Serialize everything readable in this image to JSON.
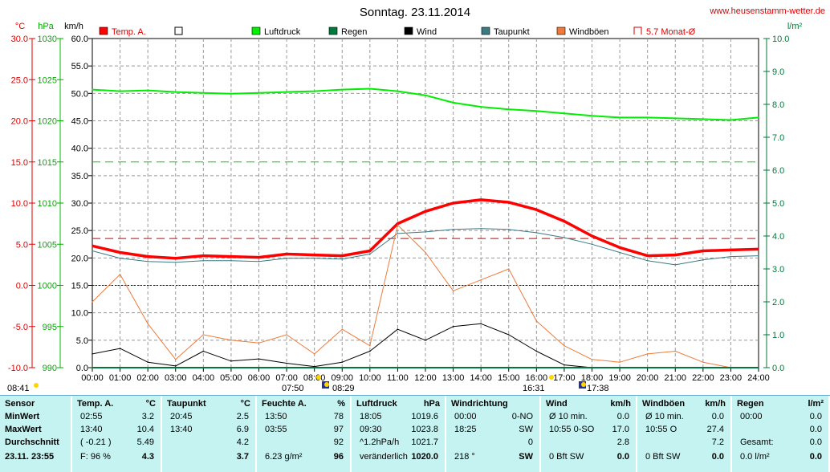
{
  "title": "Sonntag. 23.11.2014",
  "website": "www.heusenstamm-wetter.de",
  "colors": {
    "temp": "#ff0000",
    "pressure": "#00ee00",
    "rain": "#007a3a",
    "wind": "#000000",
    "dew": "#3a7a80",
    "gust": "#ee7a3a",
    "avg": "#cc0000"
  },
  "units": {
    "temp": "°C",
    "pressure": "hPa",
    "wind": "km/h",
    "rain": "l/m²"
  },
  "legend": [
    {
      "label": "Temp. A.",
      "color": "#ff0000",
      "style": "fill"
    },
    {
      "label": "",
      "color": "#000000",
      "style": "box"
    },
    {
      "label": "Luftdruck",
      "color": "#00ee00",
      "style": "fill"
    },
    {
      "label": "Regen",
      "color": "#007a3a",
      "style": "fill"
    },
    {
      "label": "Wind",
      "color": "#000000",
      "style": "fill"
    },
    {
      "label": "Taupunkt",
      "color": "#3a7a80",
      "style": "fill"
    },
    {
      "label": "Windböen",
      "color": "#ee7a3a",
      "style": "fill"
    },
    {
      "label": "5.7 Monat-Ø",
      "color": "#cc0000",
      "style": "bracket"
    }
  ],
  "below_axis": {
    "sunrise_left": "08:41",
    "moon_rise": "07:50",
    "sun_rise": "08:29",
    "moon_set": "16:31",
    "sun_set": "17:38"
  },
  "chart_data": {
    "type": "line",
    "x_ticks": [
      "00:00",
      "01:00",
      "02:00",
      "03:00",
      "04:00",
      "05:00",
      "06:00",
      "07:00",
      "08:00",
      "09:00",
      "10:00",
      "11:00",
      "12:00",
      "13:00",
      "14:00",
      "15:00",
      "16:00",
      "17:00",
      "18:00",
      "19:00",
      "20:00",
      "21:00",
      "22:00",
      "23:00",
      "24:00"
    ],
    "axes": {
      "temp": {
        "label": "°C",
        "range": [
          -10,
          30
        ],
        "ticks": [
          "-10.0",
          "-5.0",
          "0.0",
          "5.0",
          "10.0",
          "15.0",
          "20.0",
          "25.0",
          "30.0"
        ]
      },
      "pressure": {
        "label": "hPa",
        "range": [
          990,
          1030
        ],
        "ticks": [
          "990",
          "995",
          "1000",
          "1005",
          "1010",
          "1015",
          "1020",
          "1025",
          "1030"
        ]
      },
      "wind": {
        "label": "km/h",
        "range": [
          0,
          60
        ],
        "ticks": [
          "0.0",
          "5.0",
          "10.0",
          "15.0",
          "20.0",
          "25.0",
          "30.0",
          "35.0",
          "40.0",
          "45.0",
          "50.0",
          "55.0",
          "60.0"
        ]
      },
      "rain": {
        "label": "l/m²",
        "range": [
          0,
          10
        ],
        "ticks": [
          "0.0",
          "1.0",
          "2.0",
          "3.0",
          "4.0",
          "5.0",
          "6.0",
          "7.0",
          "8.0",
          "9.0",
          "10.0"
        ]
      }
    },
    "grid": true,
    "reference_lines": {
      "pressure_ref": 1015,
      "temp_zero": 0,
      "month_avg_temp": 5.7
    },
    "series": [
      {
        "name": "Temp. A.",
        "axis": "temp",
        "x": [
          0,
          1,
          2,
          3,
          4,
          5,
          6,
          7,
          8,
          9,
          10,
          11,
          12,
          13,
          14,
          15,
          16,
          17,
          18,
          19,
          20,
          21,
          22,
          23,
          24
        ],
        "values": [
          4.8,
          4.0,
          3.5,
          3.3,
          3.6,
          3.5,
          3.4,
          3.8,
          3.7,
          3.6,
          4.2,
          7.5,
          9.0,
          10.0,
          10.4,
          10.1,
          9.2,
          7.8,
          6.0,
          4.6,
          3.6,
          3.7,
          4.2,
          4.3,
          4.4
        ]
      },
      {
        "name": "Taupunkt",
        "axis": "temp",
        "x": [
          0,
          1,
          2,
          3,
          4,
          5,
          6,
          7,
          8,
          9,
          10,
          11,
          12,
          13,
          14,
          15,
          16,
          17,
          18,
          19,
          20,
          21,
          22,
          23,
          24
        ],
        "values": [
          4.2,
          3.3,
          2.9,
          2.8,
          3.0,
          3.0,
          2.9,
          3.3,
          3.3,
          3.2,
          3.8,
          6.3,
          6.5,
          6.8,
          6.9,
          6.8,
          6.4,
          5.8,
          5.0,
          4.0,
          3.0,
          2.5,
          3.1,
          3.5,
          3.6
        ]
      },
      {
        "name": "Luftdruck",
        "axis": "pressure",
        "x": [
          0,
          1,
          2,
          3,
          4,
          5,
          6,
          7,
          8,
          9,
          10,
          11,
          12,
          13,
          14,
          15,
          16,
          17,
          18,
          19,
          20,
          21,
          22,
          23,
          24
        ],
        "values": [
          1023.8,
          1023.6,
          1023.7,
          1023.5,
          1023.4,
          1023.3,
          1023.4,
          1023.5,
          1023.6,
          1023.8,
          1023.9,
          1023.6,
          1023.1,
          1022.2,
          1021.7,
          1021.4,
          1021.2,
          1020.9,
          1020.6,
          1020.4,
          1020.4,
          1020.3,
          1020.2,
          1020.1,
          1020.4
        ]
      },
      {
        "name": "Wind",
        "axis": "wind",
        "x": [
          0,
          1,
          2,
          3,
          4,
          5,
          6,
          7,
          8,
          9,
          10,
          11,
          12,
          13,
          14,
          15,
          16,
          17,
          18,
          19,
          20,
          21,
          22,
          23,
          24
        ],
        "values": [
          2.5,
          3.5,
          1.0,
          0.3,
          3.0,
          1.2,
          1.6,
          0.8,
          0.2,
          1.0,
          3.0,
          7.0,
          5.0,
          7.5,
          8.0,
          6.0,
          3.0,
          0.5,
          0,
          0,
          0,
          0,
          0,
          0,
          0
        ]
      },
      {
        "name": "Windböen",
        "axis": "wind",
        "x": [
          0,
          1,
          2,
          3,
          4,
          5,
          6,
          7,
          8,
          9,
          10,
          11,
          12,
          13,
          14,
          15,
          16,
          17,
          18,
          19,
          20,
          21,
          22,
          23,
          24
        ],
        "values": [
          12.0,
          17.0,
          8.0,
          1.5,
          6.0,
          5.0,
          4.5,
          6.0,
          2.5,
          7.0,
          4.0,
          26.0,
          21.0,
          14.0,
          16.0,
          18.0,
          8.5,
          4.0,
          1.5,
          1.0,
          2.5,
          3.0,
          1.0,
          0,
          0
        ]
      },
      {
        "name": "Regen",
        "axis": "rain",
        "x": [
          0,
          24
        ],
        "values": [
          0.0,
          0.0
        ]
      }
    ]
  },
  "table": {
    "rows": [
      "Sensor",
      "MinWert",
      "MaxWert",
      "Durchschnitt",
      "23.11. 23:55"
    ],
    "cols": [
      {
        "head": "Temp. A.",
        "unit": "°C",
        "cells": [
          [
            "02:55",
            "3.2"
          ],
          [
            "13:40",
            "10.4"
          ],
          [
            "( -0.21 )",
            "5.49"
          ],
          [
            "F: 96 %",
            "4.3"
          ]
        ]
      },
      {
        "head": "Taupunkt",
        "unit": "°C",
        "cells": [
          [
            "20:45",
            "2.5"
          ],
          [
            "13:40",
            "6.9"
          ],
          [
            "",
            "4.2"
          ],
          [
            "",
            "3.7"
          ]
        ]
      },
      {
        "head": "Feuchte A.",
        "unit": "%",
        "cells": [
          [
            "13:50",
            "78"
          ],
          [
            "03:55",
            "97"
          ],
          [
            "",
            "92"
          ],
          [
            "6.23 g/m²",
            "96"
          ]
        ]
      },
      {
        "head": "Luftdruck",
        "unit": "hPa",
        "cells": [
          [
            "18:05",
            "1019.6"
          ],
          [
            "09:30",
            "1023.8"
          ],
          [
            "^1.2hPa/h",
            "1021.7"
          ],
          [
            "veränderlich",
            "1020.0"
          ]
        ]
      },
      {
        "head": "Windrichtung",
        "unit": "",
        "cells": [
          [
            "00:00",
            "0-NO"
          ],
          [
            "18:25",
            "SW"
          ],
          [
            "",
            "0"
          ],
          [
            "218 °",
            "SW"
          ]
        ]
      },
      {
        "head": "Wind",
        "unit": "km/h",
        "cells": [
          [
            "Ø 10 min.",
            "0.0"
          ],
          [
            "10:55   0-SO",
            "17.0"
          ],
          [
            "",
            "2.8"
          ],
          [
            "0 Bft SW",
            "0.0"
          ]
        ]
      },
      {
        "head": "Windböen",
        "unit": "km/h",
        "cells": [
          [
            "Ø 10 min.",
            "0.0"
          ],
          [
            "10:55   O",
            "27.4"
          ],
          [
            "",
            "7.2"
          ],
          [
            "0 Bft SW",
            "0.0"
          ]
        ]
      },
      {
        "head": "Regen",
        "unit": "l/m²",
        "cells": [
          [
            "00:00",
            "0.0"
          ],
          [
            "",
            "0.0"
          ],
          [
            "Gesamt:",
            "0.0"
          ],
          [
            "0.0 l/m²",
            "0.0"
          ]
        ]
      }
    ]
  }
}
